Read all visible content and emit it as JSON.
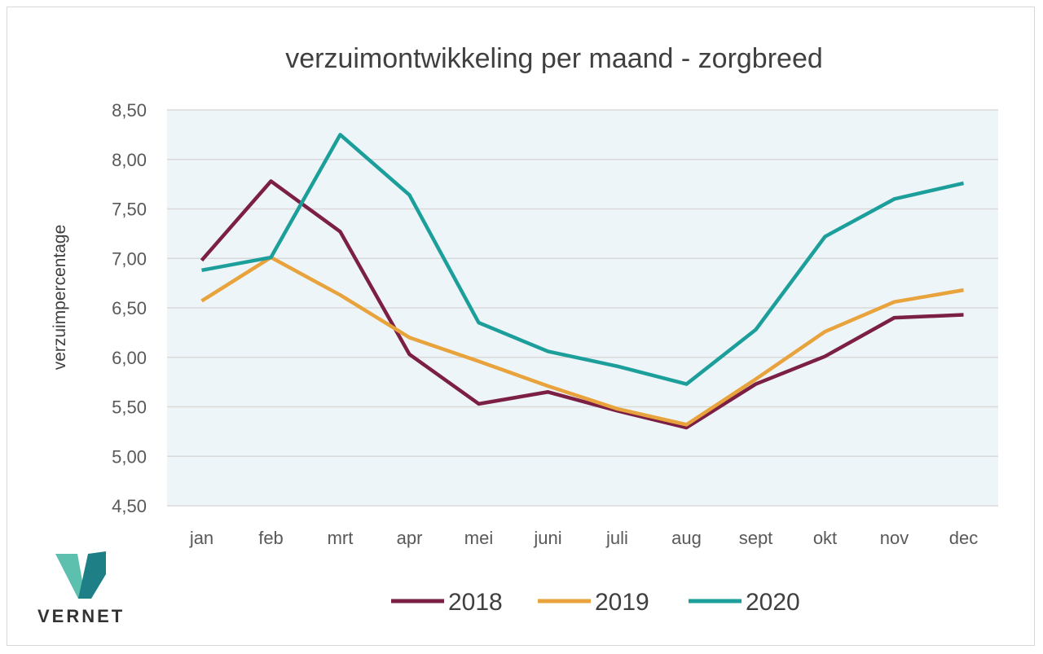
{
  "chart_data": {
    "type": "line",
    "title": "verzuimontwikkeling per maand - zorgbreed",
    "xlabel": "",
    "ylabel": "verzuimpercentage",
    "categories": [
      "jan",
      "feb",
      "mrt",
      "apr",
      "mei",
      "juni",
      "juli",
      "aug",
      "sept",
      "okt",
      "nov",
      "dec"
    ],
    "ylim": [
      4.5,
      8.5
    ],
    "yticks": [
      "4,50",
      "5,00",
      "5,50",
      "6,00",
      "6,50",
      "7,00",
      "7,50",
      "8,00",
      "8,50"
    ],
    "grid": true,
    "legend_position": "bottom",
    "series": [
      {
        "name": "2018",
        "color": "#7b1f45",
        "values": [
          6.98,
          7.78,
          7.27,
          6.03,
          5.53,
          5.65,
          5.46,
          5.29,
          5.73,
          6.01,
          6.4,
          6.43
        ]
      },
      {
        "name": "2019",
        "color": "#e8a33d",
        "values": [
          6.57,
          7.01,
          6.63,
          6.2,
          5.96,
          5.71,
          5.48,
          5.32,
          5.78,
          6.26,
          6.56,
          6.68
        ]
      },
      {
        "name": "2020",
        "color": "#1c9f9b",
        "values": [
          6.88,
          7.01,
          8.25,
          7.64,
          6.35,
          6.06,
          5.91,
          5.73,
          6.28,
          7.22,
          7.6,
          7.76
        ]
      }
    ]
  },
  "logo": {
    "text": "VERNET"
  }
}
